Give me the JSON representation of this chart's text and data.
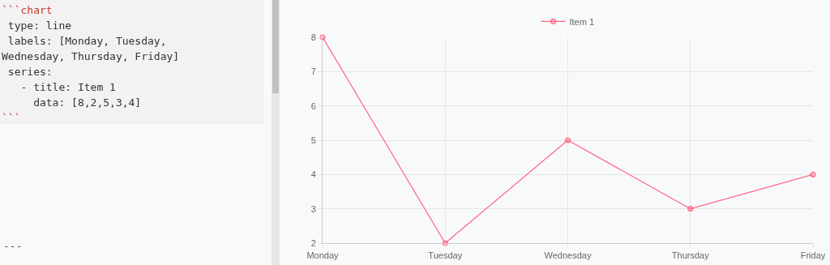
{
  "chart_data": {
    "type": "line",
    "categories": [
      "Monday",
      "Tuesday",
      "Wednesday",
      "Thursday",
      "Friday"
    ],
    "series": [
      {
        "name": "Item 1",
        "color": "#ff6384",
        "values": [
          8,
          2,
          5,
          3,
          4
        ]
      }
    ],
    "ylim": [
      2,
      8
    ],
    "yticks": [
      2,
      3,
      4,
      5,
      6,
      7,
      8
    ],
    "grid": true,
    "legend": "top",
    "marker": "circle",
    "line_style": "solid",
    "annotations": [
      "```chart",
      " type: line",
      " labels: [Monday, Tuesday,",
      "Wednesday, Thursday, Friday]",
      " series:",
      "   - title: Item 1",
      "     data: [8,2,5,3,4]",
      "```",
      "---"
    ]
  }
}
